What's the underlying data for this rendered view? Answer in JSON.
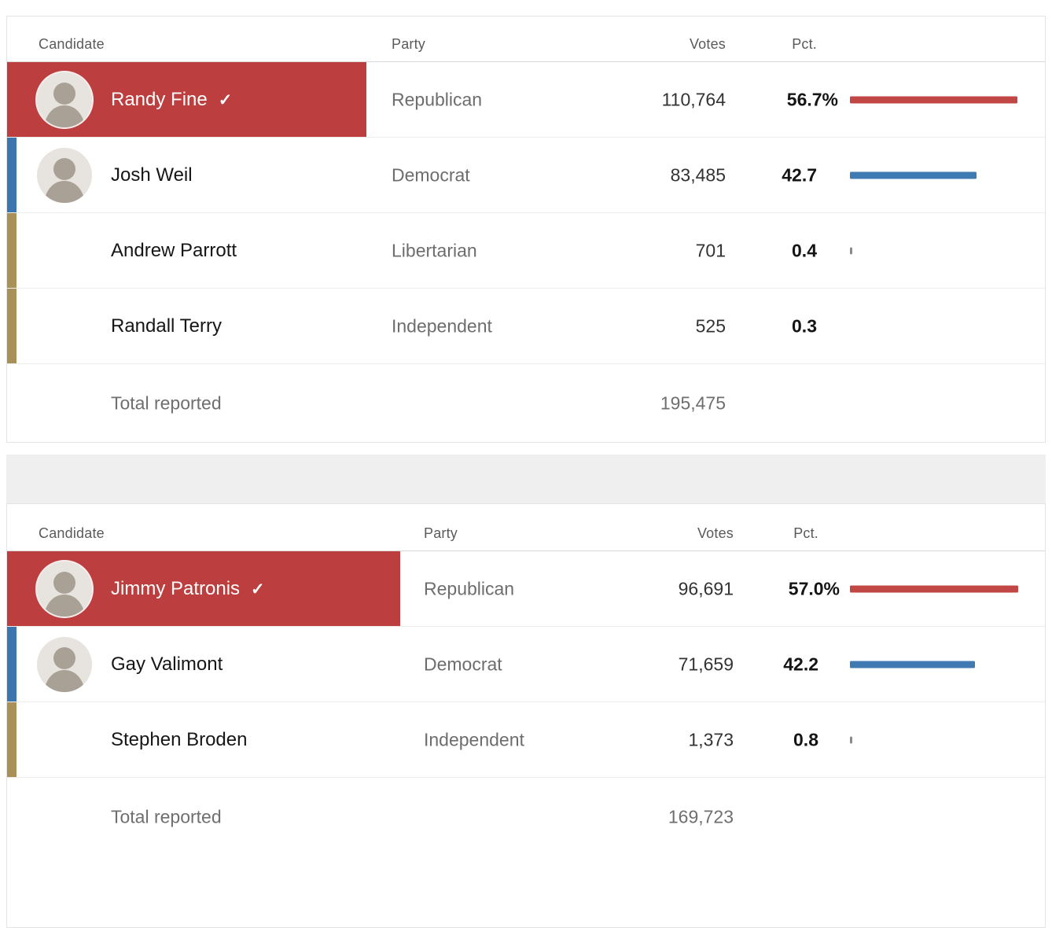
{
  "colors": {
    "republican_flag": "#bc3e3e",
    "republican_bar": "#c04744",
    "democrat_strip": "#3d76ae",
    "democrat_bar": "#3f7ab3",
    "other_strip": "#a98f58",
    "tick_gray": "#8a8a8a"
  },
  "winner_check": "✓",
  "tables": [
    {
      "headers": {
        "candidate": "Candidate",
        "party": "Party",
        "votes": "Votes",
        "pct": "Pct."
      },
      "rows": [
        {
          "name": "Randy Fine",
          "party": "Republican",
          "votes": "110,764",
          "pct": "56.7%",
          "pct_value": 56.7,
          "winner": true,
          "has_photo": true,
          "party_key": "republican"
        },
        {
          "name": "Josh Weil",
          "party": "Democrat",
          "votes": "83,485",
          "pct": "42.7",
          "pct_value": 42.7,
          "winner": false,
          "has_photo": true,
          "party_key": "democrat"
        },
        {
          "name": "Andrew Parrott",
          "party": "Libertarian",
          "votes": "701",
          "pct": "0.4",
          "pct_value": 0.4,
          "winner": false,
          "has_photo": false,
          "party_key": "other"
        },
        {
          "name": "Randall Terry",
          "party": "Independent",
          "votes": "525",
          "pct": "0.3",
          "pct_value": 0.3,
          "winner": false,
          "has_photo": false,
          "party_key": "other"
        }
      ],
      "total": {
        "label": "Total reported",
        "votes": "195,475"
      }
    },
    {
      "headers": {
        "candidate": "Candidate",
        "party": "Party",
        "votes": "Votes",
        "pct": "Pct."
      },
      "rows": [
        {
          "name": "Jimmy Patronis",
          "party": "Republican",
          "votes": "96,691",
          "pct": "57.0%",
          "pct_value": 57.0,
          "winner": true,
          "has_photo": true,
          "party_key": "republican"
        },
        {
          "name": "Gay Valimont",
          "party": "Democrat",
          "votes": "71,659",
          "pct": "42.2",
          "pct_value": 42.2,
          "winner": false,
          "has_photo": true,
          "party_key": "democrat"
        },
        {
          "name": "Stephen Broden",
          "party": "Independent",
          "votes": "1,373",
          "pct": "0.8",
          "pct_value": 0.8,
          "winner": false,
          "has_photo": false,
          "party_key": "other"
        }
      ],
      "total": {
        "label": "Total reported",
        "votes": "169,723"
      }
    }
  ],
  "chart_data": [
    {
      "type": "bar",
      "title": "Race 1 results",
      "categories": [
        "Randy Fine",
        "Josh Weil",
        "Andrew Parrott",
        "Randall Terry"
      ],
      "values": [
        56.7,
        42.7,
        0.4,
        0.3
      ],
      "votes": [
        110764,
        83485,
        701,
        525
      ],
      "total_reported": 195475,
      "xlabel": "",
      "ylabel": "Pct.",
      "ylim": [
        0,
        100
      ]
    },
    {
      "type": "bar",
      "title": "Race 2 results",
      "categories": [
        "Jimmy Patronis",
        "Gay Valimont",
        "Stephen Broden"
      ],
      "values": [
        57.0,
        42.2,
        0.8
      ],
      "votes": [
        96691,
        71659,
        1373
      ],
      "total_reported": 169723,
      "xlabel": "",
      "ylabel": "Pct.",
      "ylim": [
        0,
        100
      ]
    }
  ]
}
